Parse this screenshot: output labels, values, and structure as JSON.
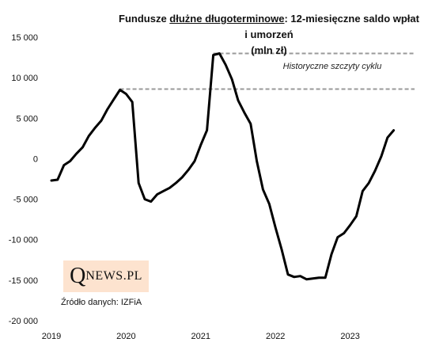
{
  "chart_data": {
    "type": "line",
    "title": {
      "prefix": "Fundusze ",
      "underlined": "dłużne długoterminowe",
      "suffix": ": 12-miesięczne saldo wpłat i umorzeń",
      "line2": "(mln zł)"
    },
    "xlabel": "",
    "ylabel": "",
    "ylim": [
      -20000,
      15000
    ],
    "yticks": [
      15000,
      10000,
      5000,
      0,
      -5000,
      -10000,
      -15000,
      -20000
    ],
    "ytick_labels": [
      "15 000",
      "10 000",
      "5 000",
      "0",
      "-5 000",
      "-10 000",
      "-15 000",
      "-20 000"
    ],
    "xlim": [
      2019,
      2024
    ],
    "xticks": [
      2019,
      2020,
      2021,
      2022,
      2023
    ],
    "xtick_labels": [
      "2019",
      "2020",
      "2021",
      "2022",
      "2023"
    ],
    "grid": false,
    "legend": "none",
    "series": [
      {
        "color": "#000000",
        "x": [
          2019.0,
          2019.083,
          2019.167,
          2019.25,
          2019.333,
          2019.417,
          2019.5,
          2019.583,
          2019.667,
          2019.75,
          2019.833,
          2019.917,
          2020.0,
          2020.083,
          2020.167,
          2020.25,
          2020.333,
          2020.417,
          2020.5,
          2020.583,
          2020.667,
          2020.75,
          2020.833,
          2020.917,
          2021.0,
          2021.083,
          2021.167,
          2021.25,
          2021.333,
          2021.417,
          2021.5,
          2021.583,
          2021.667,
          2021.75,
          2021.833,
          2021.917,
          2022.0,
          2022.083,
          2022.167,
          2022.25,
          2022.333,
          2022.417,
          2022.5,
          2022.583,
          2022.667,
          2022.75,
          2022.833,
          2022.917,
          2023.0,
          2023.083,
          2023.167,
          2023.25,
          2023.333,
          2023.417,
          2023.5,
          2023.583
        ],
        "values": [
          -2700,
          -2600,
          -800,
          -300,
          600,
          1400,
          2800,
          3800,
          4700,
          6100,
          7300,
          8500,
          8000,
          7000,
          -3000,
          -5000,
          -5300,
          -4400,
          -4000,
          -3600,
          -3000,
          -2300,
          -1400,
          -300,
          1700,
          3500,
          12800,
          13000,
          11600,
          9800,
          7200,
          5700,
          4300,
          -300,
          -3800,
          -5600,
          -8500,
          -11200,
          -14300,
          -14600,
          -14500,
          -14900,
          -14800,
          -14700,
          -14700,
          -11800,
          -9700,
          -9200,
          -8200,
          -7100,
          -4000,
          -3000,
          -1500,
          300,
          2600,
          3500
        ]
      }
    ],
    "reference_lines": [
      {
        "y": 8600,
        "x_start": 2019.917,
        "style": "dashed",
        "color": "#999999"
      },
      {
        "y": 13000,
        "x_start": 2021.167,
        "style": "dashed",
        "color": "#999999"
      }
    ],
    "annotations": [
      {
        "text": "Historyczne  szczyty  cyklu",
        "x": 2022.1,
        "y": 11100
      }
    ]
  },
  "logo": {
    "q": "Q",
    "rest": "NEWS.PL"
  },
  "source": "Źródło danych: IZFiA"
}
